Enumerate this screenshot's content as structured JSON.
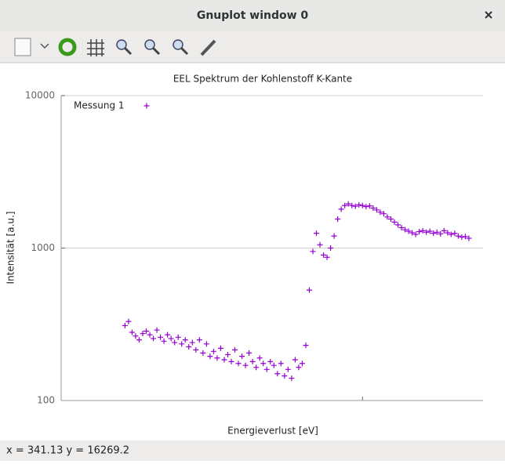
{
  "window": {
    "title": "Gnuplot window 0",
    "status": "x = 341.13 y = 16269.2"
  },
  "chart_data": {
    "type": "scatter",
    "title": "EEL Spektrum der Kohlenstoff K-Kante",
    "xlabel": "Energieverlust [eV]",
    "ylabel": "Intensität [a.u.]",
    "x": [
      233,
      234,
      235,
      236,
      237,
      238,
      239,
      240,
      241,
      242,
      243,
      244,
      245,
      246,
      247,
      248,
      249,
      250,
      251,
      252,
      253,
      254,
      255,
      256,
      257,
      258,
      259,
      260,
      261,
      262,
      263,
      264,
      265,
      266,
      267,
      268,
      269,
      270,
      271,
      272,
      273,
      274,
      275,
      276,
      277,
      278,
      279,
      280,
      281,
      282,
      283,
      284,
      285,
      286,
      287,
      288,
      289,
      290,
      291,
      292,
      293,
      294,
      295,
      296,
      297,
      298,
      299,
      300,
      301,
      302,
      303,
      304,
      305,
      306,
      307,
      308,
      309,
      310,
      311,
      312,
      313,
      314,
      315,
      316,
      317,
      318,
      319,
      320,
      321,
      322,
      323,
      324,
      325,
      326,
      327,
      328,
      329,
      330
    ],
    "series": [
      {
        "name": "Messung 1",
        "color": "#9400d3",
        "values": [
          310,
          330,
          280,
          265,
          250,
          275,
          285,
          270,
          255,
          290,
          260,
          245,
          270,
          255,
          240,
          260,
          235,
          250,
          225,
          240,
          215,
          250,
          205,
          235,
          195,
          210,
          190,
          220,
          185,
          200,
          180,
          215,
          175,
          195,
          170,
          205,
          180,
          165,
          190,
          175,
          160,
          180,
          170,
          150,
          175,
          145,
          160,
          140,
          185,
          165,
          175,
          230,
          530,
          950,
          1250,
          1050,
          900,
          870,
          1000,
          1200,
          1550,
          1800,
          1900,
          1950,
          1900,
          1880,
          1920,
          1900,
          1870,
          1890,
          1830,
          1780,
          1720,
          1680,
          1600,
          1550,
          1480,
          1420,
          1360,
          1320,
          1290,
          1260,
          1230,
          1280,
          1300,
          1270,
          1290,
          1250,
          1270,
          1240,
          1300,
          1260,
          1230,
          1250,
          1200,
          1180,
          1190,
          1160
        ]
      }
    ],
    "xlim": [
      215,
      334
    ],
    "xticks": [
      300
    ],
    "ylim": [
      100,
      10000
    ],
    "yticks": [
      100,
      1000,
      10000
    ],
    "log_y": true,
    "grid": true,
    "legend": "upper left"
  }
}
